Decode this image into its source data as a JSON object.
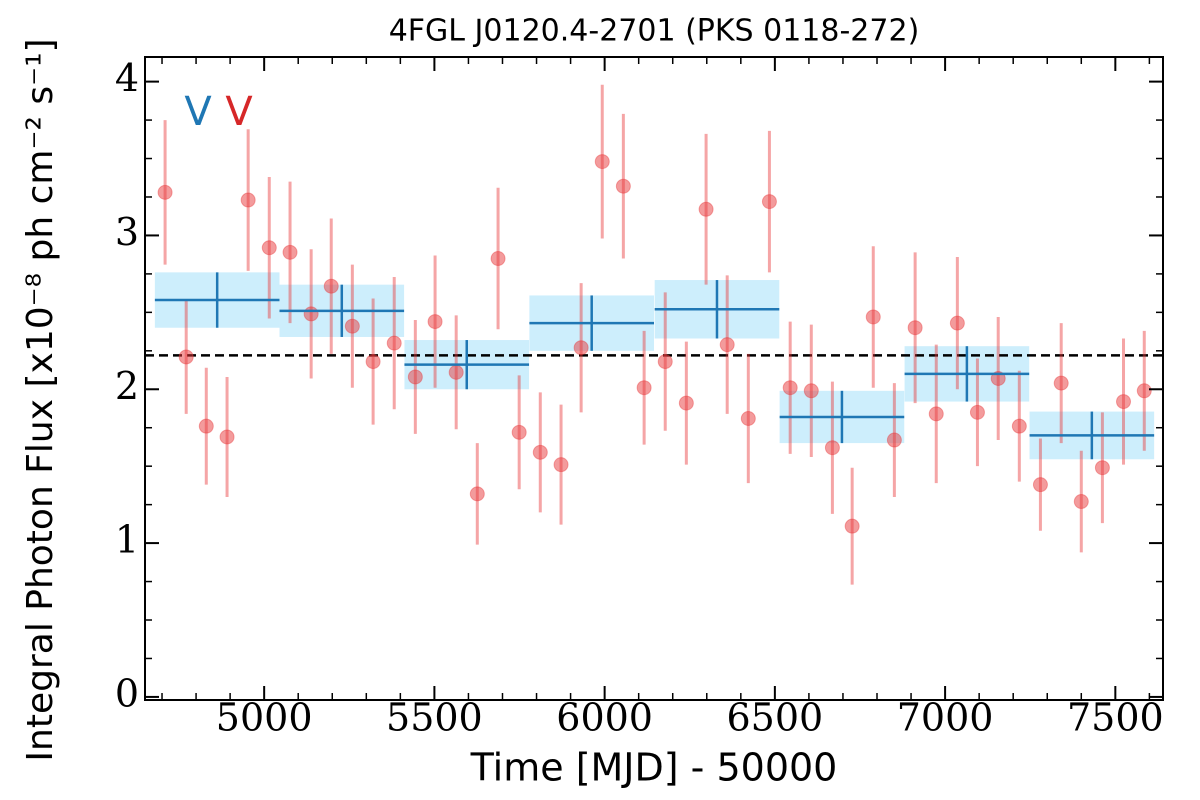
{
  "chart_data": {
    "type": "errorbar",
    "title": "4FGL J0120.4-2701 (PKS 0118-272)",
    "xlabel": "Time [MJD] - 50000",
    "ylabel": "Integral Photon Flux [x10⁻⁸ ph cm⁻² s⁻¹]",
    "xlim": [
      4650,
      7640
    ],
    "ylim": [
      -0.02,
      4.16
    ],
    "xticks": [
      5000,
      5500,
      6000,
      6500,
      7000,
      7500
    ],
    "yticks": [
      0,
      1,
      2,
      3,
      4
    ],
    "xminorticks": [
      4700,
      4800,
      4900,
      5100,
      5200,
      5300,
      5400,
      5600,
      5700,
      5800,
      5900,
      6100,
      6200,
      6300,
      6400,
      6600,
      6700,
      6800,
      6900,
      7100,
      7200,
      7300,
      7400,
      7600
    ],
    "yminorticks": [
      0.25,
      0.5,
      0.75,
      1.25,
      1.5,
      1.75,
      2.25,
      2.5,
      2.75,
      3.25,
      3.5,
      3.75,
      4.25
    ],
    "markers": [
      {
        "label": "V",
        "color": "#1f77b4"
      },
      {
        "label": "V",
        "color": "#d62728"
      }
    ],
    "reference_line": {
      "value": 2.22,
      "color": "#000000",
      "style": "dashed"
    },
    "series": [
      {
        "kind": "points",
        "color": "#e8383a",
        "x": [
          4709,
          4771,
          4830,
          4891,
          4953,
          5015,
          5076,
          5138,
          5197,
          5259,
          5320,
          5382,
          5444,
          5502,
          5564,
          5626,
          5687,
          5749,
          5811,
          5872,
          5931,
          5993,
          6055,
          6116,
          6178,
          6240,
          6298,
          6360,
          6422,
          6484,
          6545,
          6607,
          6669,
          6727,
          6789,
          6851,
          6912,
          6974,
          7036,
          7095,
          7156,
          7218,
          7280,
          7341,
          7400,
          7462,
          7524,
          7585
        ],
        "values": [
          3.28,
          2.21,
          1.76,
          1.69,
          3.23,
          2.92,
          2.89,
          2.49,
          2.67,
          2.41,
          2.18,
          2.3,
          2.08,
          2.44,
          2.11,
          1.32,
          2.85,
          1.72,
          1.59,
          1.51,
          2.27,
          3.48,
          3.32,
          2.01,
          2.18,
          1.91,
          3.17,
          2.29,
          1.81,
          3.22,
          2.01,
          1.99,
          1.62,
          1.11,
          2.47,
          1.67,
          2.4,
          1.84,
          2.43,
          1.85,
          2.07,
          1.76,
          1.38,
          2.04,
          1.27,
          1.49,
          1.92,
          1.99
        ],
        "errors": [
          0.47,
          0.37,
          0.38,
          0.39,
          0.46,
          0.46,
          0.46,
          0.42,
          0.44,
          0.4,
          0.41,
          0.43,
          0.37,
          0.43,
          0.37,
          0.33,
          0.46,
          0.37,
          0.39,
          0.39,
          0.42,
          0.5,
          0.47,
          0.37,
          0.45,
          0.4,
          0.49,
          0.45,
          0.42,
          0.46,
          0.43,
          0.43,
          0.43,
          0.38,
          0.46,
          0.37,
          0.49,
          0.45,
          0.43,
          0.35,
          0.4,
          0.36,
          0.3,
          0.39,
          0.33,
          0.36,
          0.41,
          0.39
        ]
      },
      {
        "kind": "binned",
        "color": "#1f77b4",
        "band_color": "#cdeefc",
        "x": [
          4862,
          5228,
          5595,
          5962,
          6330,
          6697,
          7064,
          7431
        ],
        "xerr": [
          183,
          183,
          183,
          183,
          183,
          183,
          183,
          183
        ],
        "values": [
          2.58,
          2.51,
          2.16,
          2.43,
          2.52,
          1.82,
          2.1,
          1.7
        ],
        "errors": [
          0.18,
          0.17,
          0.16,
          0.18,
          0.19,
          0.17,
          0.18,
          0.155
        ]
      }
    ]
  }
}
